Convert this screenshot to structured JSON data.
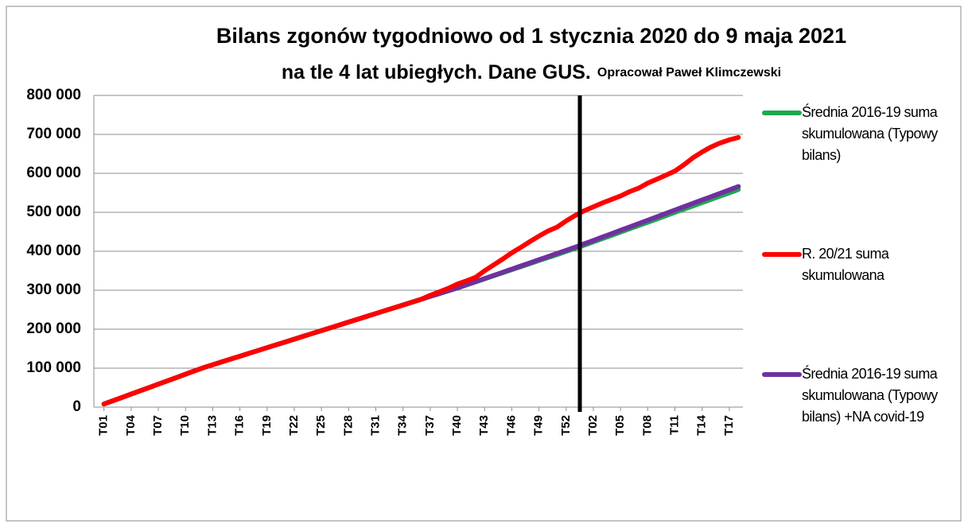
{
  "chart_data": {
    "type": "line",
    "title": "Bilans zgonów tygodniowo od 1 stycznia 2020 do 9 maja 2021",
    "subtitle": "na tle 4 lat ubiegłych. Dane GUS.",
    "author": "Opracował Paweł Klimczewski",
    "categories": [
      "T01",
      null,
      null,
      "T04",
      null,
      null,
      "T07",
      null,
      null,
      "T10",
      null,
      null,
      "T13",
      null,
      null,
      "T16",
      null,
      null,
      "T19",
      null,
      null,
      "T22",
      null,
      null,
      "T25",
      null,
      null,
      "T28",
      null,
      null,
      "T31",
      null,
      null,
      "T34",
      null,
      null,
      "T37",
      null,
      null,
      "T40",
      null,
      null,
      "T43",
      null,
      null,
      "T46",
      null,
      null,
      "T49",
      null,
      null,
      "T52",
      null,
      null,
      "T02",
      null,
      null,
      "T05",
      null,
      null,
      "T08",
      null,
      null,
      "T11",
      null,
      null,
      "T14",
      null,
      null,
      "T17",
      null
    ],
    "series": [
      {
        "name": "Średnia 2016-19 suma skumulowana (Typowy bilans)",
        "color": "#1fa84f",
        "values": [
          8000,
          16500,
          25000,
          33500,
          42000,
          50500,
          59000,
          67500,
          76000,
          84500,
          93000,
          101500,
          108800,
          116100,
          123400,
          130700,
          138000,
          145300,
          152600,
          159900,
          167200,
          174500,
          181800,
          189100,
          196400,
          203700,
          211000,
          218300,
          225600,
          232900,
          240200,
          247500,
          254800,
          262100,
          269400,
          276700,
          284000,
          291300,
          298600,
          305900,
          313700,
          321500,
          329300,
          337100,
          344900,
          352700,
          360500,
          368300,
          376100,
          383900,
          391700,
          399500,
          407300,
          415700,
          424100,
          432500,
          440900,
          449300,
          457700,
          466100,
          474500,
          482900,
          491300,
          499700,
          508100,
          516500,
          524900,
          533300,
          541700,
          550100,
          558500
        ]
      },
      {
        "name": "R. 20/21 suma skumulowana",
        "color": "#ff0000",
        "values": [
          8000,
          16500,
          25000,
          33500,
          42000,
          50500,
          59000,
          67500,
          76000,
          84500,
          93000,
          101500,
          108800,
          116100,
          123400,
          130700,
          138000,
          145300,
          152600,
          159900,
          167200,
          174500,
          181800,
          189100,
          196400,
          203700,
          211000,
          218300,
          225600,
          232900,
          240200,
          247500,
          254800,
          262100,
          269400,
          276700,
          287000,
          296000,
          305000,
          316000,
          324000,
          333000,
          350000,
          365000,
          380000,
          396000,
          410000,
          425000,
          439000,
          452000,
          462000,
          478000,
          492000,
          504000,
          514000,
          524000,
          533000,
          542000,
          553000,
          562000,
          575000,
          585000,
          595000,
          606000,
          622000,
          640000,
          655000,
          668000,
          678000,
          686000,
          692000
        ]
      },
      {
        "name": "Średnia 2016-19 suma skumulowana (Typowy bilans) +NA covid-19",
        "color": "#7030a0",
        "values": [
          8000,
          16500,
          25000,
          33500,
          42000,
          50500,
          59000,
          67500,
          76000,
          84500,
          93000,
          101500,
          108800,
          116100,
          123400,
          130700,
          138000,
          145300,
          152600,
          159900,
          167200,
          174500,
          181800,
          189100,
          196400,
          203700,
          211000,
          218300,
          225600,
          232900,
          240200,
          247500,
          254800,
          262100,
          269400,
          276700,
          284000,
          291300,
          298600,
          305900,
          313950,
          322000,
          330050,
          338100,
          346150,
          354200,
          362250,
          370300,
          378350,
          386400,
          394450,
          402500,
          410550,
          419200,
          427850,
          436500,
          445150,
          453800,
          462450,
          471100,
          479750,
          488400,
          497050,
          505700,
          514350,
          523000,
          531650,
          540300,
          548950,
          557600,
          566250
        ]
      }
    ],
    "ylim": [
      0,
      800000
    ],
    "yticks": [
      0,
      {
        "value": 100000,
        "label": "100 000"
      },
      {
        "value": 200000,
        "label": "200 000"
      },
      {
        "value": 300000,
        "label": "300 000"
      },
      {
        "value": 400000,
        "label": "400 000"
      },
      {
        "value": 500000,
        "label": "500 000"
      },
      {
        "value": 600000,
        "label": "600 000"
      },
      {
        "value": 700000,
        "label": "700 000"
      },
      {
        "value": 800000,
        "label": "800 000"
      }
    ],
    "grid": true,
    "legend": "right"
  }
}
